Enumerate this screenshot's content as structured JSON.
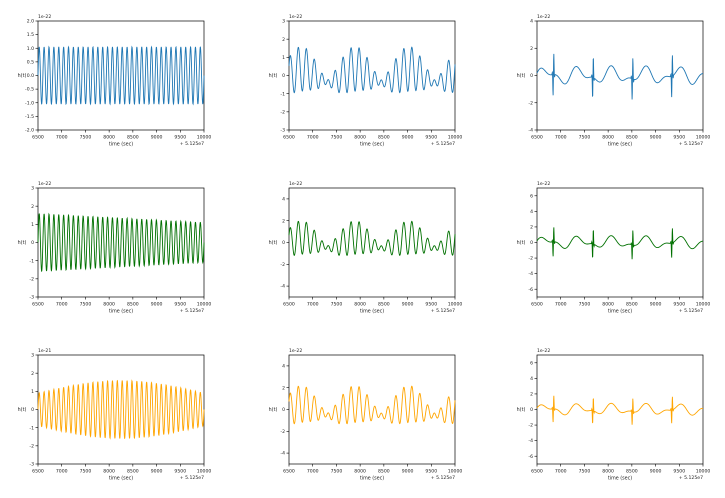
{
  "figure": {
    "grid": "3x3",
    "colors": {
      "row1": "#1f77b4",
      "row2": "#007000",
      "row3": "#ffa500"
    }
  },
  "chart_data": [
    {
      "type": "line",
      "row": 0,
      "col": 0,
      "series_color": "#1f77b4",
      "scale_label": "1e-22",
      "offset_label": "+ 5.125e7",
      "ylabel": "h(t)",
      "xlabel": "time (sec)",
      "xlim": [
        6500,
        10000
      ],
      "xticks": [
        6500,
        7000,
        7500,
        8000,
        8500,
        9000,
        9500,
        10000
      ],
      "ylim": [
        -2.0,
        2.0
      ],
      "yticks": [
        -2.0,
        -1.5,
        -1.0,
        -0.5,
        0.0,
        0.5,
        1.0,
        1.5,
        2.0
      ],
      "signal": {
        "shape": "sinusoid",
        "cycles": 34,
        "amplitude_start": 1.05,
        "amplitude_end": 1.05
      }
    },
    {
      "type": "line",
      "row": 0,
      "col": 1,
      "series_color": "#1f77b4",
      "scale_label": "1e-22",
      "offset_label": "+ 5.125e7",
      "ylabel": "h(t)",
      "xlabel": "time (sec)",
      "xlim": [
        6500,
        10000
      ],
      "xticks": [
        6500,
        7000,
        7500,
        8000,
        8500,
        9000,
        9500,
        10000
      ],
      "ylim": [
        -3,
        3
      ],
      "yticks": [
        -3,
        -2,
        -1,
        0,
        1,
        2,
        3
      ],
      "signal": {
        "shape": "beating",
        "cycles": 22,
        "amplitude_max": 1.6
      }
    },
    {
      "type": "line",
      "row": 0,
      "col": 2,
      "series_color": "#1f77b4",
      "scale_label": "1e-22",
      "offset_label": "+ 5.125e7",
      "ylabel": "h(t)",
      "xlabel": "time (sec)",
      "xlim": [
        6500,
        10000
      ],
      "xticks": [
        6500,
        7000,
        7500,
        8000,
        8500,
        9000,
        9500,
        10000
      ],
      "ylim": [
        -4,
        4
      ],
      "yticks": [
        -4,
        -2,
        0,
        2,
        4
      ],
      "signal": {
        "shape": "spikes",
        "cycles": 10,
        "amplitude_max": 1.8
      }
    },
    {
      "type": "line",
      "row": 1,
      "col": 0,
      "series_color": "#007000",
      "scale_label": "1e-22",
      "offset_label": "+ 5.125e7",
      "ylabel": "h(t)",
      "xlabel": "time (sec)",
      "xlim": [
        6500,
        10000
      ],
      "xticks": [
        6500,
        7000,
        7500,
        8000,
        8500,
        9000,
        9500,
        10000
      ],
      "ylim": [
        -3,
        3
      ],
      "yticks": [
        -3,
        -2,
        -1,
        0,
        1,
        2,
        3
      ],
      "signal": {
        "shape": "sinusoid",
        "cycles": 34,
        "amplitude_start": 1.6,
        "amplitude_end": 1.1
      }
    },
    {
      "type": "line",
      "row": 1,
      "col": 1,
      "series_color": "#007000",
      "scale_label": "1e-22",
      "offset_label": "+ 5.125e7",
      "ylabel": "h(t)",
      "xlabel": "time (sec)",
      "xlim": [
        6500,
        10000
      ],
      "xticks": [
        6500,
        7000,
        7500,
        8000,
        8500,
        9000,
        9500,
        10000
      ],
      "ylim": [
        -5,
        5
      ],
      "yticks": [
        -4,
        -2,
        0,
        2,
        4
      ],
      "signal": {
        "shape": "beating",
        "cycles": 22,
        "amplitude_max": 2.0
      }
    },
    {
      "type": "line",
      "row": 1,
      "col": 2,
      "series_color": "#007000",
      "scale_label": "1e-22",
      "offset_label": "+ 5.125e7",
      "ylabel": "h(t)",
      "xlabel": "time (sec)",
      "xlim": [
        6500,
        10000
      ],
      "xticks": [
        6500,
        7000,
        7500,
        8000,
        8500,
        9000,
        9500,
        10000
      ],
      "ylim": [
        -7,
        7
      ],
      "yticks": [
        -6,
        -4,
        -2,
        0,
        2,
        4,
        6
      ],
      "signal": {
        "shape": "spikes",
        "cycles": 10,
        "amplitude_max": 2.2
      }
    },
    {
      "type": "line",
      "row": 2,
      "col": 0,
      "series_color": "#ffa500",
      "scale_label": "1e-21",
      "offset_label": "+ 5.125e7",
      "ylabel": "h(t)",
      "xlabel": "time (sec)",
      "xlim": [
        6500,
        10000
      ],
      "xticks": [
        6500,
        7000,
        7500,
        8000,
        8500,
        9000,
        9500,
        10000
      ],
      "ylim": [
        -3,
        3
      ],
      "yticks": [
        -3,
        -2,
        -1,
        0,
        1,
        2,
        3
      ],
      "signal": {
        "shape": "swell",
        "cycles": 34,
        "amplitude_start": 0.9,
        "amplitude_peak": 1.6,
        "amplitude_end": 0.9
      }
    },
    {
      "type": "line",
      "row": 2,
      "col": 1,
      "series_color": "#ffa500",
      "scale_label": "1e-22",
      "offset_label": "+ 5.125e7",
      "ylabel": "h(t)",
      "xlabel": "time (sec)",
      "xlim": [
        6500,
        10000
      ],
      "xticks": [
        6500,
        7000,
        7500,
        8000,
        8500,
        9000,
        9500,
        10000
      ],
      "ylim": [
        -5,
        5
      ],
      "yticks": [
        -4,
        -2,
        0,
        2,
        4
      ],
      "signal": {
        "shape": "beating",
        "cycles": 22,
        "amplitude_max": 2.2
      }
    },
    {
      "type": "line",
      "row": 2,
      "col": 2,
      "series_color": "#ffa500",
      "scale_label": "1e-22",
      "offset_label": "+ 5.125e7",
      "ylabel": "h(t)",
      "xlabel": "time (sec)",
      "xlim": [
        6500,
        10000
      ],
      "xticks": [
        6500,
        7000,
        7500,
        8000,
        8500,
        9000,
        9500,
        10000
      ],
      "ylim": [
        -7,
        7
      ],
      "yticks": [
        -6,
        -4,
        -2,
        0,
        2,
        4,
        6
      ],
      "signal": {
        "shape": "spikes",
        "cycles": 10,
        "amplitude_max": 2.0
      }
    }
  ]
}
